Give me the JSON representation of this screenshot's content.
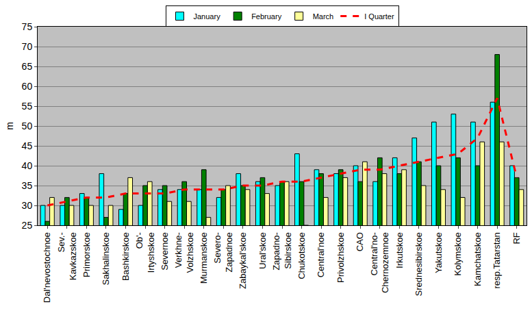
{
  "chart_data": {
    "type": "bar",
    "y_label": "m",
    "categories": [
      "Dal'nevostochnoe",
      "Sev.-\nKavkazskoe",
      "Primorskoe",
      "Sakhalinskoe",
      "Bashkirskoe",
      "Ob'-\nIrtyshskoe",
      "Severnoe",
      "Verkhne-\nVolzhskoe",
      "Murmanskoe",
      "Severo-\nZapadnoe",
      "Zabaykal'skoe",
      "Ural'skoe",
      "Zapadno-\nSibirskoe",
      "Chukotskoe",
      "Central'noe",
      "Privolzhskoe",
      "CAO",
      "Central'no-\nChernozemnoe",
      "Irkutskoe",
      "Srednesibirskoe",
      "Yakutskoe",
      "Kolymskoe",
      "Kamchatskoe",
      "resp.Tatarstan",
      "RF"
    ],
    "series": [
      {
        "name": "January",
        "type": "bar",
        "color": "#00ffff",
        "values": [
          30,
          30,
          33,
          38,
          29,
          30,
          34,
          34,
          34,
          32,
          38,
          36,
          35,
          43,
          39,
          38,
          40,
          36,
          42,
          47,
          51,
          53,
          51,
          56,
          40
        ]
      },
      {
        "name": "February",
        "type": "bar",
        "color": "#008000",
        "values": [
          26,
          32,
          32,
          27,
          33,
          35,
          35,
          36,
          39,
          34,
          35,
          37,
          36,
          36,
          38,
          39,
          36,
          42,
          38,
          41,
          40,
          42,
          40,
          68,
          37
        ]
      },
      {
        "name": "March",
        "type": "bar",
        "color": "#ffff99",
        "values": [
          32,
          30,
          30,
          30,
          37,
          36,
          31,
          31,
          27,
          35,
          34,
          33,
          36,
          25,
          32,
          37,
          41,
          38,
          39,
          35,
          34,
          32,
          46,
          46,
          34
        ]
      },
      {
        "name": "I Quarter",
        "type": "line",
        "color": "#ff0000",
        "line_style": "dashed",
        "values": [
          30,
          31,
          32,
          32,
          33,
          33,
          33,
          34,
          34,
          34,
          35,
          35,
          36,
          36,
          37,
          38,
          39,
          39,
          40,
          41,
          42,
          43,
          47,
          57,
          37
        ]
      }
    ],
    "ylim": [
      25,
      75
    ],
    "yticks": [
      25,
      30,
      35,
      40,
      45,
      50,
      55,
      60,
      65,
      70,
      75
    ],
    "grid": true,
    "legend": "top"
  }
}
